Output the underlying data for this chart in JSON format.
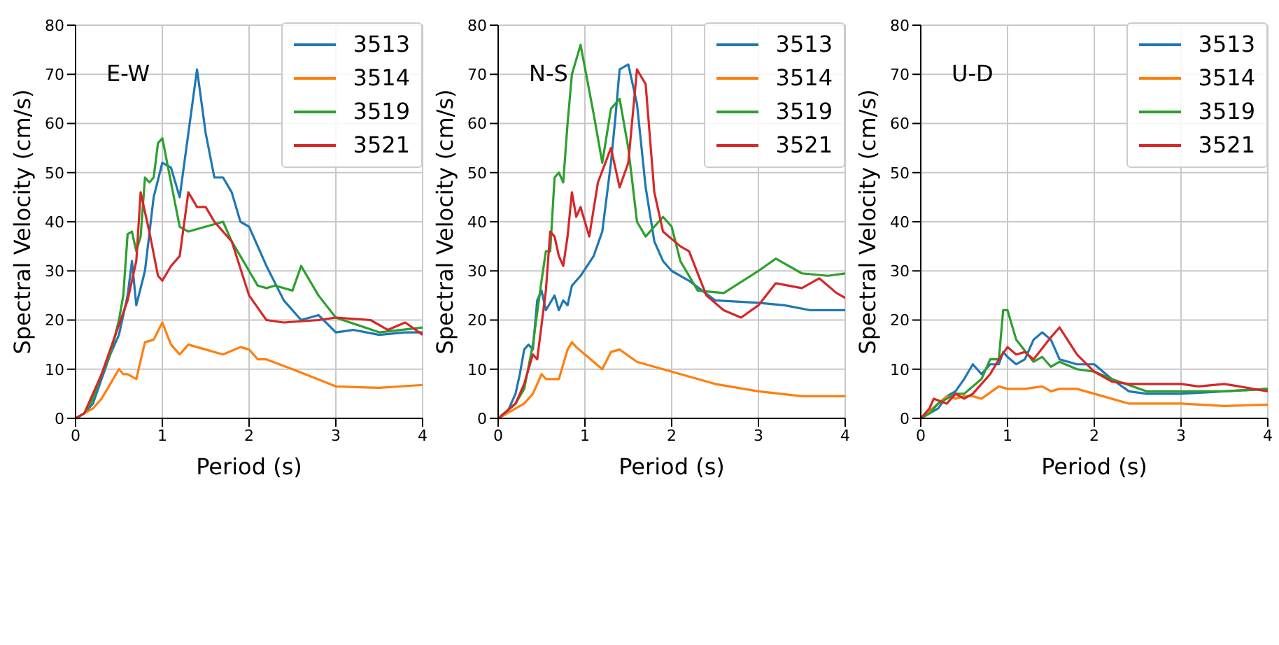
{
  "chart_data": [
    {
      "type": "line",
      "annotations": [
        "E-W"
      ],
      "xlabel": "Period (s)",
      "ylabel": "Spectral Velocity (cm/s)",
      "xlim": [
        0,
        4
      ],
      "xticks": [
        0,
        1,
        2,
        3,
        4
      ],
      "ylim": [
        0,
        80
      ],
      "yticks": [
        0,
        10,
        20,
        30,
        40,
        50,
        60,
        70,
        80
      ],
      "grid": true,
      "legend": "top right",
      "series": [
        {
          "name": "3513",
          "color": "#1f77b4",
          "x": [
            0,
            0.1,
            0.2,
            0.3,
            0.4,
            0.5,
            0.6,
            0.65,
            0.7,
            0.8,
            0.9,
            1.0,
            1.1,
            1.2,
            1.4,
            1.5,
            1.6,
            1.7,
            1.8,
            1.9,
            2.0,
            2.2,
            2.4,
            2.6,
            2.8,
            3.0,
            3.2,
            3.5,
            3.8,
            4
          ],
          "values": [
            0,
            1,
            3,
            8,
            13,
            17,
            25,
            32,
            23,
            30,
            45,
            52,
            51,
            45,
            71,
            58,
            49,
            49,
            46,
            40,
            39,
            31,
            24,
            20,
            21,
            17.5,
            18,
            17,
            17.5,
            17.5
          ]
        },
        {
          "name": "3514",
          "color": "#ff7f0e",
          "x": [
            0,
            0.1,
            0.2,
            0.3,
            0.4,
            0.5,
            0.55,
            0.6,
            0.7,
            0.8,
            0.9,
            1.0,
            1.1,
            1.2,
            1.3,
            1.5,
            1.7,
            1.9,
            2.0,
            2.1,
            2.2,
            2.5,
            3.0,
            3.5,
            4
          ],
          "values": [
            0,
            1,
            2,
            4,
            7,
            10,
            9,
            9,
            8,
            15.5,
            16,
            19.5,
            15,
            13,
            15,
            14,
            13,
            14.5,
            14,
            12,
            12,
            10,
            6.5,
            6.2,
            6.8
          ]
        },
        {
          "name": "3519",
          "color": "#2ca02c",
          "x": [
            0,
            0.1,
            0.2,
            0.3,
            0.4,
            0.5,
            0.55,
            0.6,
            0.65,
            0.7,
            0.75,
            0.8,
            0.85,
            0.9,
            0.95,
            1.0,
            1.2,
            1.3,
            1.5,
            1.7,
            1.8,
            1.9,
            2.0,
            2.1,
            2.2,
            2.3,
            2.5,
            2.6,
            2.8,
            3.0,
            3.5,
            4
          ],
          "values": [
            0,
            1,
            4,
            9,
            13,
            20,
            25,
            37.5,
            38,
            34,
            37,
            49,
            48,
            49,
            56,
            57,
            39,
            38,
            39,
            40,
            36,
            33,
            30,
            27,
            26.5,
            27,
            26,
            31,
            25,
            20.5,
            17.5,
            18.5
          ]
        },
        {
          "name": "3521",
          "color": "#d62728",
          "x": [
            0,
            0.1,
            0.2,
            0.3,
            0.4,
            0.5,
            0.6,
            0.7,
            0.75,
            0.85,
            0.95,
            1.0,
            1.1,
            1.2,
            1.3,
            1.4,
            1.5,
            1.6,
            1.8,
            2.0,
            2.2,
            2.4,
            2.8,
            3.0,
            3.4,
            3.6,
            3.8,
            4
          ],
          "values": [
            0,
            1,
            5,
            9,
            14,
            19,
            24,
            32,
            46,
            38,
            29,
            28,
            31,
            33,
            46,
            43,
            43,
            40,
            36,
            25,
            20,
            19.5,
            20,
            20.5,
            20,
            18,
            19.5,
            17
          ]
        }
      ]
    },
    {
      "type": "line",
      "annotations": [
        "N-S"
      ],
      "xlabel": "Period (s)",
      "ylabel": "Spectral Velocity (cm/s)",
      "xlim": [
        0,
        4
      ],
      "xticks": [
        0,
        1,
        2,
        3,
        4
      ],
      "ylim": [
        0,
        80
      ],
      "yticks": [
        0,
        10,
        20,
        30,
        40,
        50,
        60,
        70,
        80
      ],
      "grid": true,
      "legend": "top right",
      "series": [
        {
          "name": "3513",
          "color": "#1f77b4",
          "x": [
            0,
            0.1,
            0.2,
            0.25,
            0.3,
            0.35,
            0.4,
            0.45,
            0.5,
            0.55,
            0.65,
            0.7,
            0.75,
            0.8,
            0.85,
            0.95,
            1.1,
            1.2,
            1.3,
            1.35,
            1.4,
            1.5,
            1.6,
            1.7,
            1.8,
            1.9,
            2.0,
            2.2,
            2.5,
            3.0,
            3.3,
            3.6,
            4
          ],
          "values": [
            0,
            1,
            5,
            9,
            14,
            15,
            14,
            24,
            26,
            22,
            25,
            22,
            24,
            23,
            27,
            29,
            33,
            38,
            52,
            61,
            71,
            72,
            64,
            47,
            36,
            32,
            30,
            28,
            24,
            23.5,
            23,
            22,
            22
          ]
        },
        {
          "name": "3514",
          "color": "#ff7f0e",
          "x": [
            0,
            0.2,
            0.3,
            0.4,
            0.5,
            0.55,
            0.6,
            0.7,
            0.8,
            0.85,
            0.9,
            1.0,
            1.2,
            1.3,
            1.4,
            1.6,
            1.8,
            2.0,
            2.5,
            3.0,
            3.5,
            4
          ],
          "values": [
            0,
            2,
            3,
            5,
            9,
            8,
            8,
            8,
            14,
            15.5,
            14.5,
            13,
            10,
            13.5,
            14,
            11.5,
            10.5,
            9.5,
            7,
            5.5,
            4.5,
            4.5
          ]
        },
        {
          "name": "3519",
          "color": "#2ca02c",
          "x": [
            0,
            0.2,
            0.3,
            0.4,
            0.5,
            0.55,
            0.6,
            0.65,
            0.7,
            0.75,
            0.8,
            0.85,
            0.95,
            1.1,
            1.2,
            1.3,
            1.4,
            1.5,
            1.6,
            1.7,
            1.9,
            2.0,
            2.1,
            2.3,
            2.6,
            3.0,
            3.2,
            3.5,
            3.8,
            4
          ],
          "values": [
            0,
            3,
            6,
            15,
            28,
            34,
            34,
            49,
            50,
            48,
            60,
            70,
            76,
            62,
            52,
            63,
            65,
            55,
            40,
            37,
            41,
            39,
            32,
            26,
            25.5,
            30,
            32.5,
            29.5,
            29,
            29.5
          ]
        },
        {
          "name": "3521",
          "color": "#d62728",
          "x": [
            0,
            0.2,
            0.3,
            0.4,
            0.45,
            0.5,
            0.55,
            0.6,
            0.65,
            0.7,
            0.75,
            0.8,
            0.85,
            0.9,
            0.95,
            1.05,
            1.15,
            1.3,
            1.4,
            1.5,
            1.6,
            1.7,
            1.8,
            1.9,
            2.1,
            2.2,
            2.4,
            2.6,
            2.8,
            3.0,
            3.2,
            3.5,
            3.7,
            3.9,
            4
          ],
          "values": [
            0,
            3,
            7,
            13,
            12,
            19,
            26,
            38,
            37,
            33,
            31,
            37,
            46,
            41,
            43,
            37,
            48,
            55,
            47,
            52,
            71,
            68,
            46,
            38,
            35,
            34,
            25,
            22,
            20.5,
            23,
            27.5,
            26.5,
            28.5,
            25.5,
            24.5
          ]
        }
      ]
    },
    {
      "type": "line",
      "annotations": [
        "U-D"
      ],
      "xlabel": "Period (s)",
      "ylabel": "Spectral Velocity (cm/s)",
      "xlim": [
        0,
        4
      ],
      "xticks": [
        0,
        1,
        2,
        3,
        4
      ],
      "ylim": [
        0,
        80
      ],
      "yticks": [
        0,
        10,
        20,
        30,
        40,
        50,
        60,
        70,
        80
      ],
      "grid": true,
      "legend": "top right",
      "series": [
        {
          "name": "3513",
          "color": "#1f77b4",
          "x": [
            0,
            0.2,
            0.3,
            0.4,
            0.5,
            0.6,
            0.7,
            0.8,
            0.9,
            0.95,
            1.0,
            1.1,
            1.2,
            1.3,
            1.4,
            1.5,
            1.6,
            1.8,
            2.0,
            2.2,
            2.4,
            2.6,
            3.0,
            3.5,
            4
          ],
          "values": [
            0,
            2,
            4.5,
            5.5,
            8,
            11,
            9,
            11,
            11,
            13.5,
            12.5,
            11,
            12,
            16,
            17.5,
            16,
            12,
            11,
            11,
            8,
            5.5,
            5,
            5,
            5.5,
            6
          ]
        },
        {
          "name": "3514",
          "color": "#ff7f0e",
          "x": [
            0,
            0.2,
            0.3,
            0.4,
            0.5,
            0.6,
            0.7,
            0.9,
            1.0,
            1.2,
            1.4,
            1.5,
            1.6,
            1.8,
            2.0,
            2.4,
            3.0,
            3.5,
            4
          ],
          "values": [
            0,
            3,
            4.5,
            4,
            4.5,
            4.5,
            4,
            6.5,
            6,
            6,
            6.5,
            5.5,
            6,
            6,
            5,
            3,
            3,
            2.5,
            2.8
          ]
        },
        {
          "name": "3519",
          "color": "#2ca02c",
          "x": [
            0,
            0.1,
            0.2,
            0.3,
            0.4,
            0.5,
            0.7,
            0.8,
            0.9,
            0.95,
            1.0,
            1.1,
            1.3,
            1.4,
            1.5,
            1.6,
            1.8,
            2.0,
            2.2,
            2.6,
            3.0,
            3.5,
            4
          ],
          "values": [
            0,
            1,
            3,
            4,
            5,
            5,
            8,
            12,
            12,
            22,
            22,
            16,
            11.5,
            12.5,
            10.5,
            11.5,
            10,
            9.5,
            8,
            5.5,
            5.5,
            5.5,
            6
          ]
        },
        {
          "name": "3521",
          "color": "#d62728",
          "x": [
            0,
            0.1,
            0.15,
            0.3,
            0.4,
            0.5,
            0.6,
            0.7,
            0.8,
            0.9,
            1.0,
            1.1,
            1.2,
            1.3,
            1.5,
            1.6,
            1.8,
            2.0,
            2.2,
            2.4,
            3.0,
            3.2,
            3.5,
            4
          ],
          "values": [
            0,
            2,
            4,
            3,
            5,
            4,
            5,
            7,
            9,
            12,
            14.5,
            13,
            13.5,
            12,
            16.5,
            18.5,
            13,
            9.5,
            7.5,
            7,
            7,
            6.5,
            7,
            5.5
          ]
        }
      ]
    }
  ]
}
